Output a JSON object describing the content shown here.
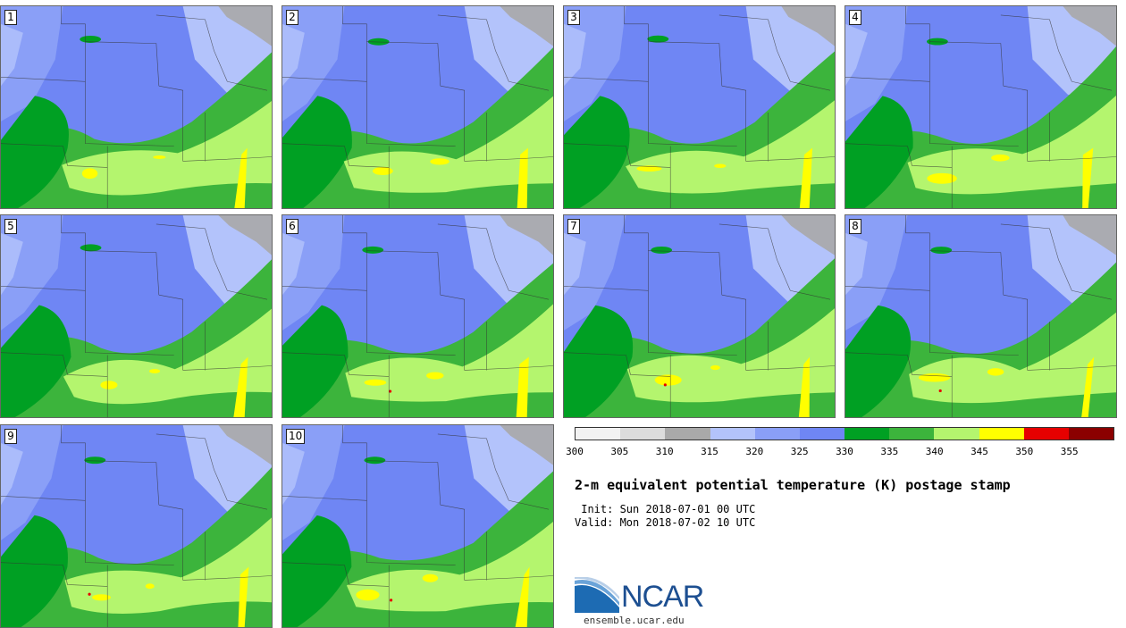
{
  "members": [
    {
      "label": "1"
    },
    {
      "label": "2"
    },
    {
      "label": "3"
    },
    {
      "label": "4"
    },
    {
      "label": "5"
    },
    {
      "label": "6"
    },
    {
      "label": "7"
    },
    {
      "label": "8"
    },
    {
      "label": "9"
    },
    {
      "label": "10"
    }
  ],
  "colorbar": {
    "colors": [
      "#f2f2f2",
      "#dcdcdc",
      "#a9a9a9",
      "#b3c3fb",
      "#8a9ff7",
      "#6f86f4",
      "#00a023",
      "#3cb43c",
      "#b4f56e",
      "#ffff00",
      "#e60000",
      "#8b0000"
    ],
    "tick_labels": [
      "300",
      "305",
      "310",
      "315",
      "320",
      "325",
      "330",
      "335",
      "340",
      "345",
      "350",
      "355"
    ]
  },
  "title": "2-m equivalent potential temperature (K) postage stamp",
  "init": " Init: Sun 2018-07-01 00 UTC",
  "valid": "Valid: Mon 2018-07-02 10 UTC",
  "logo": {
    "name": "NCAR",
    "url": "ensemble.ucar.edu"
  }
}
